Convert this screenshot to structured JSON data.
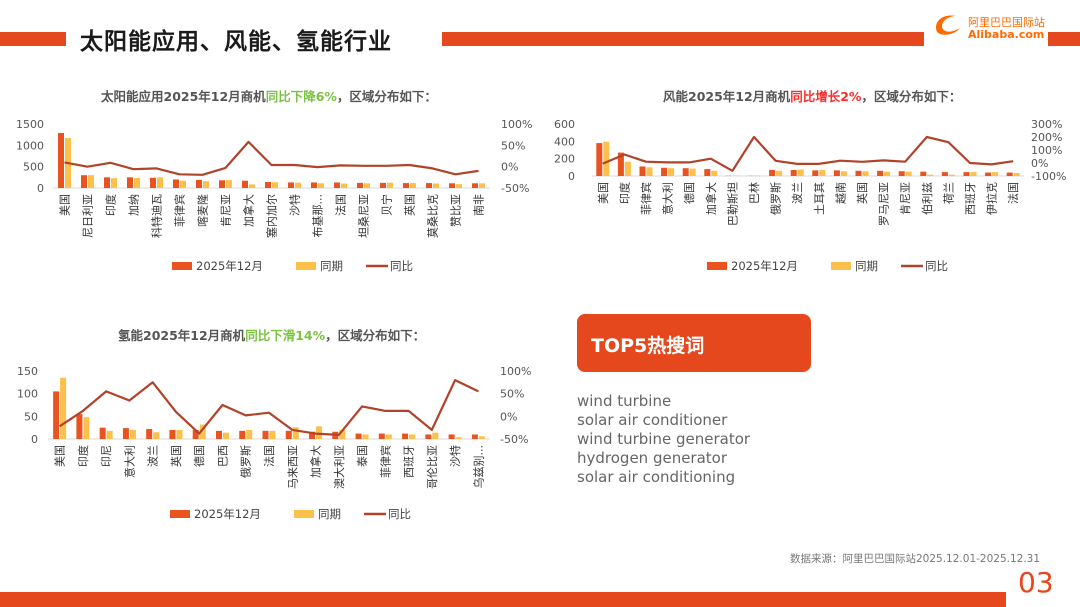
{
  "header": {
    "title": "太阳能应用、风能、氢能行业"
  },
  "logo": {
    "cn": "阿里巴巴国际站",
    "en": "Alibaba.com"
  },
  "colors": {
    "accent": "#e5481d",
    "current": "#e8531f",
    "previous": "#fdc04a",
    "yoy": "#b1432a",
    "green": "#7cc242",
    "red": "#ff2a2a"
  },
  "charts": {
    "solar": {
      "title_pre": "太阳能应用2025年12月商机",
      "title_hl": "同比下降6%",
      "title_post": "，区域分布如下："
    },
    "wind": {
      "title_pre": "风能2025年12月商机",
      "title_hl": "同比增长2%",
      "title_post": "，区域分布如下："
    },
    "hydrogen": {
      "title_pre": "氢能2025年12月商机",
      "title_hl": "同比下滑14%",
      "title_post": "，区域分布如下："
    }
  },
  "chart_data": [
    {
      "id": "solar",
      "type": "bar",
      "title": "太阳能应用2025年12月商机同比下降6%，区域分布如下：",
      "categories": [
        "美国",
        "尼日利亚",
        "印度",
        "加纳",
        "科特迪瓦",
        "菲律宾",
        "喀麦隆",
        "肯尼亚",
        "加拿大",
        "塞内加尔",
        "沙特",
        "布基那...",
        "法国",
        "坦桑尼亚",
        "贝宁",
        "英国",
        "莫桑比克",
        "赞比亚",
        "南非"
      ],
      "series": [
        {
          "name": "2025年12月",
          "values": [
            1290,
            300,
            250,
            250,
            240,
            200,
            190,
            180,
            170,
            140,
            130,
            130,
            130,
            120,
            120,
            115,
            115,
            110,
            110
          ]
        },
        {
          "name": "同期",
          "values": [
            1170,
            300,
            230,
            235,
            250,
            170,
            160,
            185,
            85,
            135,
            125,
            110,
            105,
            110,
            125,
            115,
            105,
            90,
            110
          ]
        },
        {
          "name": "同比",
          "axis": "right",
          "values": [
            0.1,
            0.0,
            0.09,
            -0.06,
            -0.04,
            -0.18,
            -0.19,
            -0.03,
            0.58,
            0.04,
            0.04,
            -0.01,
            0.03,
            0.02,
            0.02,
            0.04,
            -0.04,
            -0.18,
            -0.1
          ]
        }
      ],
      "ylim": [
        0,
        1500
      ],
      "yticks": [
        "1500",
        "1000",
        "500",
        "0"
      ],
      "y2lim": [
        -0.5,
        1.0
      ],
      "y2ticks": [
        "100%",
        "50%",
        "0%",
        "-50%"
      ],
      "legend": [
        "2025年12月",
        "同期",
        "同比"
      ],
      "legend_position": "bottom"
    },
    {
      "id": "wind",
      "type": "bar",
      "title": "风能2025年12月商机同比增长2%，区域分布如下：",
      "categories": [
        "美国",
        "印度",
        "菲律宾",
        "意大利",
        "德国",
        "加拿大",
        "巴勒斯坦",
        "巴林",
        "俄罗斯",
        "波兰",
        "土耳其",
        "越南",
        "英国",
        "罗马尼亚",
        "肯尼亚",
        "伯利兹",
        "荷兰",
        "西班牙",
        "伊拉克",
        "法国"
      ],
      "series": [
        {
          "name": "2025年12月",
          "values": [
            380,
            270,
            110,
            95,
            90,
            80,
            2,
            2,
            70,
            70,
            65,
            65,
            60,
            60,
            55,
            50,
            45,
            45,
            40,
            40
          ]
        },
        {
          "name": "同期",
          "values": [
            395,
            165,
            100,
            90,
            85,
            60,
            5,
            5,
            60,
            75,
            70,
            55,
            55,
            50,
            50,
            15,
            15,
            45,
            45,
            35
          ]
        },
        {
          "name": "同比",
          "axis": "right",
          "values": [
            -0.05,
            0.65,
            0.1,
            0.05,
            0.05,
            0.33,
            -0.6,
            2.0,
            0.17,
            -0.07,
            -0.07,
            0.18,
            0.09,
            0.2,
            0.1,
            2.0,
            1.6,
            0.0,
            -0.11,
            0.14
          ]
        }
      ],
      "ylim": [
        0,
        600
      ],
      "yticks": [
        "600",
        "400",
        "200",
        "0"
      ],
      "y2lim": [
        -1.0,
        3.0
      ],
      "y2ticks": [
        "300%",
        "200%",
        "100%",
        "0%",
        "-100%"
      ],
      "legend": [
        "2025年12月",
        "同期",
        "同比"
      ],
      "legend_position": "bottom"
    },
    {
      "id": "hydrogen",
      "type": "bar",
      "title": "氢能2025年12月商机同比下滑14%，区域分布如下：",
      "categories": [
        "美国",
        "印度",
        "印尼",
        "意大利",
        "波兰",
        "英国",
        "德国",
        "巴西",
        "俄罗斯",
        "法国",
        "马来西亚",
        "加拿大",
        "澳大利亚",
        "泰国",
        "菲律宾",
        "西班牙",
        "哥伦比亚",
        "沙特",
        "乌兹别..."
      ],
      "series": [
        {
          "name": "2025年12月",
          "values": [
            105,
            55,
            25,
            24,
            22,
            20,
            20,
            18,
            18,
            18,
            18,
            16,
            16,
            12,
            12,
            12,
            10,
            10,
            10
          ]
        },
        {
          "name": "同期",
          "values": [
            135,
            48,
            18,
            20,
            15,
            20,
            32,
            14,
            20,
            18,
            26,
            28,
            20,
            10,
            10,
            10,
            14,
            4,
            6
          ]
        },
        {
          "name": "同比",
          "axis": "right",
          "values": [
            -0.22,
            0.12,
            0.55,
            0.35,
            0.75,
            0.1,
            -0.38,
            0.25,
            0.02,
            0.08,
            -0.3,
            -0.38,
            -0.41,
            0.22,
            0.12,
            0.12,
            -0.3,
            0.8,
            0.55
          ]
        }
      ],
      "ylim": [
        0,
        150
      ],
      "yticks": [
        "150",
        "100",
        "50",
        "0"
      ],
      "y2lim": [
        -0.5,
        1.0
      ],
      "y2ticks": [
        "100%",
        "50%",
        "0%",
        "-50%"
      ],
      "legend": [
        "2025年12月",
        "同期",
        "同比"
      ],
      "legend_position": "bottom"
    }
  ],
  "top5": {
    "title": "TOP5热搜词",
    "keywords": [
      "wind turbine",
      "solar air conditioner",
      "wind turbine generator",
      "hydrogen generator",
      "solar air conditioning"
    ]
  },
  "footer": {
    "source": "数据来源：阿里巴巴国际站2025.12.01-2025.12.31",
    "page": "03"
  }
}
